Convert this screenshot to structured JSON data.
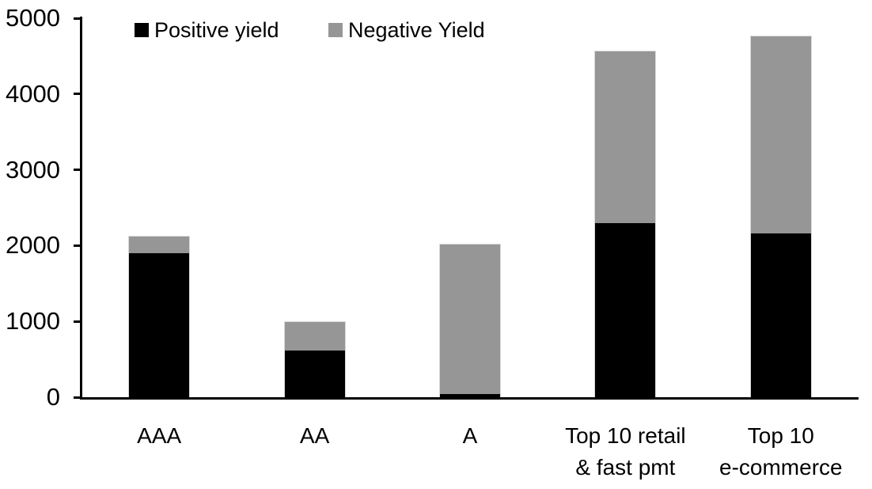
{
  "chart_data": {
    "type": "bar",
    "stacked": true,
    "title": "",
    "xlabel": "",
    "ylabel": "",
    "grid": false,
    "legend_position": "top",
    "categories": [
      "AAA",
      "AA",
      "A",
      "Top 10 retail\n& fast pmt",
      "Top 10\ne-commerce"
    ],
    "series": [
      {
        "name": "Positive yield",
        "color": "#000000",
        "values": [
          1900,
          620,
          40,
          2300,
          2160
        ]
      },
      {
        "name": "Negative Yield",
        "color": "#969696",
        "values": [
          230,
          385,
          1990,
          2270,
          2610
        ]
      }
    ],
    "totals": [
      2130,
      1005,
      2030,
      4570,
      4770
    ],
    "ylim": [
      0,
      5000
    ],
    "yticks": [
      0,
      1000,
      2000,
      3000,
      4000,
      5000
    ]
  },
  "colors": {
    "background": "#ffffff",
    "axis": "#000000",
    "positive": "#000000",
    "negative": "#969696",
    "bar_outline": "#d9d9d9"
  }
}
